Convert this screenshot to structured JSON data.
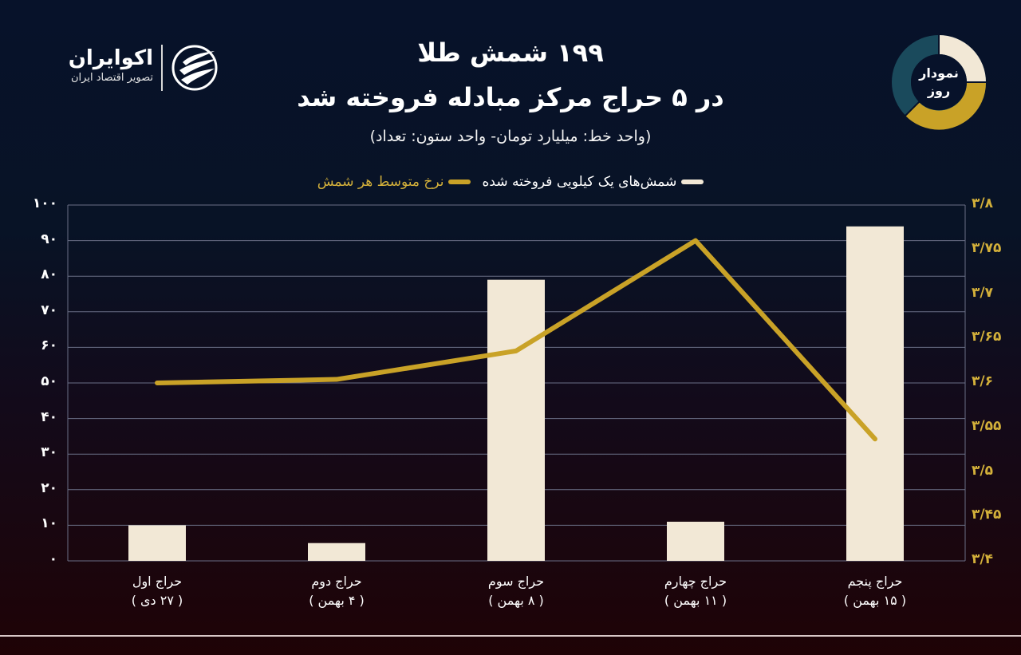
{
  "brand": {
    "name": "اکوایران",
    "tagline": "تصویر اقتصاد ایران",
    "logo_icon": "ecoiran-logo-icon"
  },
  "badge": {
    "line1": "نمودار",
    "line2": "روز",
    "colors": [
      "#f2e8d6",
      "#c9a227",
      "#1a4a5c"
    ]
  },
  "header": {
    "title_line1": "۱۹۹ شمش طلا",
    "title_line2": "در ۵ حراج مرکز مبادله فروخته شد",
    "subtitle": "(واحد خط: میلیارد تومان- واحد ستون: تعداد)"
  },
  "legend": {
    "bars_label": "شمش‌های یک کیلویی فروخته شده",
    "line_label": "نرخ متوسط هر شمش",
    "bars_color": "#f2e8d6",
    "line_color": "#c9a227"
  },
  "axes": {
    "left_ticks": [
      "۱۰۰",
      "۹۰",
      "۸۰",
      "۷۰",
      "۶۰",
      "۵۰",
      "۴۰",
      "۳۰",
      "۲۰",
      "۱۰",
      "۰"
    ],
    "right_ticks": [
      "۳/۸",
      "۳/۷۵",
      "۳/۷",
      "۳/۶۵",
      "۳/۶",
      "۳/۵۵",
      "۳/۵",
      "۳/۴۵",
      "۳/۴"
    ]
  },
  "categories": [
    {
      "name": "حراج اول",
      "date": "( ۲۷ دی )"
    },
    {
      "name": "حراج دوم",
      "date": "( ۴ بهمن )"
    },
    {
      "name": "حراج سوم",
      "date": "( ۸ بهمن )"
    },
    {
      "name": "حراج چهارم",
      "date": "( ۱۱ بهمن )"
    },
    {
      "name": "حراج پنجم",
      "date": "( ۱۵ بهمن )"
    }
  ],
  "chart_data": {
    "type": "bar",
    "title": "۱۹۹ شمش طلا در ۵ حراج مرکز مبادله فروخته شد",
    "subtitle": "(واحد خط: میلیارد تومان- واحد ستون: تعداد)",
    "categories": [
      "حراج اول (۲۷ دی)",
      "حراج دوم (۴ بهمن)",
      "حراج سوم (۸ بهمن)",
      "حراج چهارم (۱۱ بهمن)",
      "حراج پنجم (۱۵ بهمن)"
    ],
    "series": [
      {
        "name": "شمش‌های یک کیلویی فروخته شده",
        "type": "bar",
        "axis": "left",
        "color": "#f2e8d6",
        "values": [
          10,
          5,
          79,
          11,
          94
        ]
      },
      {
        "name": "نرخ متوسط هر شمش",
        "type": "line",
        "axis": "right",
        "color": "#c9a227",
        "values": [
          3.6,
          3.604,
          3.636,
          3.76,
          3.537
        ]
      }
    ],
    "ylabel_left": "تعداد",
    "ylabel_right": "میلیارد تومان",
    "ylim_left": [
      0,
      100
    ],
    "ylim_right": [
      3.4,
      3.8
    ],
    "grid": true,
    "legend_position": "top"
  }
}
